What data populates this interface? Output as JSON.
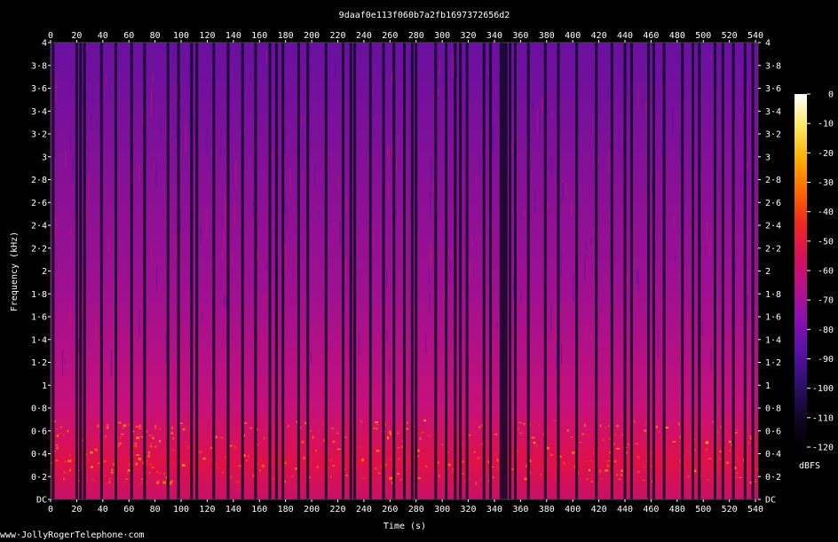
{
  "chart_data": {
    "type": "heatmap",
    "title": "9daaf0e113f060b7a2fb1697372656d2",
    "xlabel": "Time (s)",
    "ylabel": "Frequency (kHz)",
    "xlim": [
      0,
      542
    ],
    "ylim": [
      0,
      4
    ],
    "x_ticks": [
      0,
      20,
      40,
      60,
      80,
      100,
      120,
      140,
      160,
      180,
      200,
      220,
      240,
      260,
      280,
      300,
      320,
      340,
      360,
      380,
      400,
      420,
      440,
      460,
      480,
      500,
      520,
      540
    ],
    "x_tick_labels": [
      "0",
      "20",
      "40",
      "60",
      "80",
      "100",
      "120",
      "140",
      "160",
      "180",
      "200",
      "220",
      "240",
      "260",
      "280",
      "300",
      "320",
      "340",
      "360",
      "380",
      "400",
      "420",
      "440",
      "460",
      "480",
      "500",
      "520",
      "540"
    ],
    "y_ticks": [
      0,
      0.2,
      0.4,
      0.6,
      0.8,
      1,
      1.2,
      1.4,
      1.6,
      1.8,
      2,
      2.2,
      2.4,
      2.6,
      2.8,
      3,
      3.2,
      3.4,
      3.6,
      3.8,
      4
    ],
    "y_tick_labels": [
      "DC",
      "0·2",
      "0·4",
      "0·6",
      "0·8",
      "1",
      "1·2",
      "1·4",
      "1·6",
      "1·8",
      "2",
      "2·2",
      "2·4",
      "2·6",
      "2·8",
      "3",
      "3·2",
      "3·4",
      "3·6",
      "3·8",
      "4"
    ],
    "colorbar": {
      "label": "dBFS",
      "range": [
        -120,
        0
      ],
      "ticks": [
        0,
        -10,
        -20,
        -30,
        -40,
        -50,
        -60,
        -70,
        -80,
        -90,
        -100,
        -110,
        -120
      ],
      "tick_labels": [
        "0",
        "-10",
        "-20",
        "-30",
        "-40",
        "-50",
        "-60",
        "-70",
        "-80",
        "-90",
        "-100",
        "-110",
        "-120"
      ]
    },
    "silent_gaps_s": [
      2,
      20,
      23,
      26,
      39,
      50,
      62,
      72,
      90,
      98,
      108,
      112,
      125,
      136,
      147,
      157,
      168,
      173,
      178,
      190,
      197,
      211,
      224,
      230,
      233,
      245,
      255,
      263,
      271,
      277,
      280,
      295,
      303,
      310,
      314,
      319,
      332,
      337,
      345,
      347,
      349,
      352,
      356,
      366,
      379,
      389,
      403,
      418,
      430,
      440,
      445,
      458,
      462,
      470,
      484,
      492,
      497,
      509,
      515,
      523,
      532,
      538
    ],
    "colors": {
      "background": "#000000",
      "gradient": [
        "#000000",
        "#10082a",
        "#301070",
        "#5a10a8",
        "#8a10b0",
        "#b8108a",
        "#d8105a",
        "#f02a20",
        "#ff6a00",
        "#ffb000",
        "#ffe860",
        "#ffffff"
      ]
    }
  },
  "footer": {
    "credit": "www·JollyRogerTelephone·com"
  }
}
